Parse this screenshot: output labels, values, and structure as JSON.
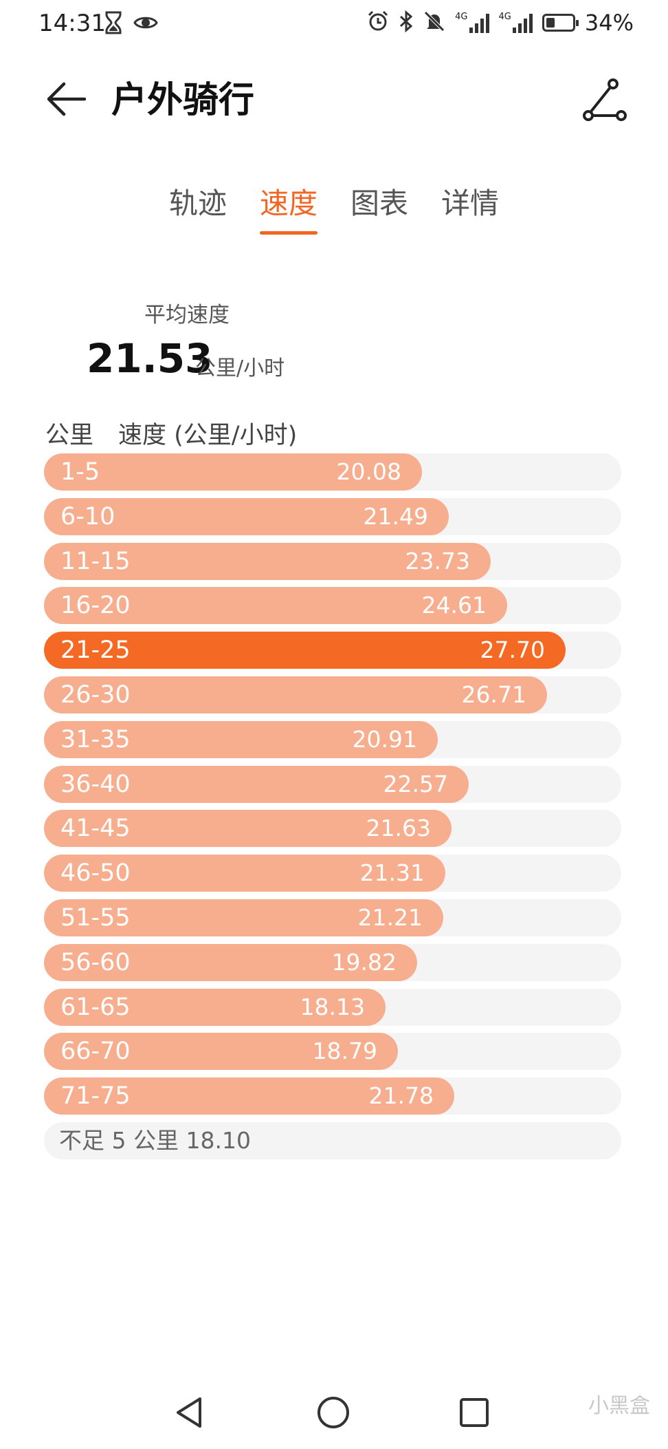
{
  "status_bar": {
    "time": "14:31",
    "battery": "34%",
    "battery_level": 0.34,
    "left_icons": [
      "hourglass-icon",
      "eye-icon"
    ],
    "right_icons": [
      "alarm-icon",
      "bluetooth-icon",
      "mute-icon",
      "signal-4g-icon",
      "signal-4g-icon",
      "battery-icon"
    ],
    "network_labels": [
      "4G",
      "4G"
    ]
  },
  "header": {
    "title": "户外骑行",
    "back_icon": "back-arrow-icon",
    "route_icon": "route-share-icon"
  },
  "tabs": [
    {
      "label": "轨迹",
      "active": false
    },
    {
      "label": "速度",
      "active": true
    },
    {
      "label": "图表",
      "active": false
    },
    {
      "label": "详情",
      "active": false
    }
  ],
  "average": {
    "label": "平均速度",
    "value": "21.53",
    "unit": "公里/小时"
  },
  "table_header": {
    "km": "公里",
    "speed": "速度 (公里/小时)"
  },
  "accent_color": "#f46a24",
  "bar_color": "#f6ae8f",
  "rows": [
    {
      "label": "1-5",
      "speed": "20.08",
      "value": 20.08
    },
    {
      "label": "6-10",
      "speed": "21.49",
      "value": 21.49
    },
    {
      "label": "11-15",
      "speed": "23.73",
      "value": 23.73
    },
    {
      "label": "16-20",
      "speed": "24.61",
      "value": 24.61
    },
    {
      "label": "21-25",
      "speed": "27.70",
      "value": 27.7,
      "highlight": true
    },
    {
      "label": "26-30",
      "speed": "26.71",
      "value": 26.71
    },
    {
      "label": "31-35",
      "speed": "20.91",
      "value": 20.91
    },
    {
      "label": "36-40",
      "speed": "22.57",
      "value": 22.57
    },
    {
      "label": "41-45",
      "speed": "21.63",
      "value": 21.63
    },
    {
      "label": "46-50",
      "speed": "21.31",
      "value": 21.31
    },
    {
      "label": "51-55",
      "speed": "21.21",
      "value": 21.21
    },
    {
      "label": "56-60",
      "speed": "19.82",
      "value": 19.82
    },
    {
      "label": "61-65",
      "speed": "18.13",
      "value": 18.13
    },
    {
      "label": "66-70",
      "speed": "18.79",
      "value": 18.79
    },
    {
      "label": "71-75",
      "speed": "21.78",
      "value": 21.78
    }
  ],
  "footer_row": {
    "text": "不足 5 公里 18.10"
  },
  "nav": {
    "back_icon": "nav-back-icon",
    "home_icon": "nav-home-icon",
    "recents_icon": "nav-recents-icon"
  },
  "watermark": "小黑盒"
}
